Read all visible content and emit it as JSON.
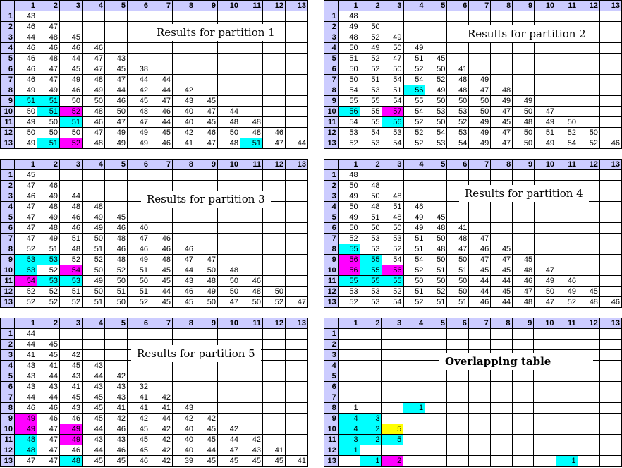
{
  "col_headers": [
    "1",
    "2",
    "3",
    "4",
    "5",
    "6",
    "7",
    "8",
    "9",
    "10",
    "11",
    "12",
    "13"
  ],
  "row_headers": [
    "1",
    "2",
    "3",
    "4",
    "5",
    "6",
    "7",
    "8",
    "9",
    "10",
    "11",
    "12",
    "13"
  ],
  "colors": {
    "header": "#ccccff",
    "cyan": "#00ffff",
    "magenta": "#ff00ff",
    "yellow": "#ffff00"
  },
  "panels": [
    {
      "title": "Results for partition 1",
      "title_bold": false,
      "rows": [
        [
          "43"
        ],
        [
          "46",
          "47"
        ],
        [
          "44",
          "48",
          "45"
        ],
        [
          "46",
          "46",
          "46",
          "46"
        ],
        [
          "46",
          "48",
          "44",
          "47",
          "43"
        ],
        [
          "46",
          "47",
          "45",
          "47",
          "45",
          "38"
        ],
        [
          "46",
          "47",
          "49",
          "48",
          "47",
          "44",
          "44"
        ],
        [
          "49",
          "49",
          "46",
          "49",
          "44",
          "42",
          "44",
          "42"
        ],
        [
          "51",
          "51",
          "50",
          "50",
          "46",
          "45",
          "47",
          "43",
          "45"
        ],
        [
          "50",
          "51",
          "52",
          "48",
          "50",
          "48",
          "46",
          "40",
          "47",
          "44"
        ],
        [
          "49",
          "50",
          "51",
          "46",
          "47",
          "47",
          "44",
          "40",
          "45",
          "48",
          "48"
        ],
        [
          "50",
          "50",
          "50",
          "47",
          "49",
          "49",
          "45",
          "42",
          "46",
          "50",
          "48",
          "46"
        ],
        [
          "49",
          "51",
          "52",
          "48",
          "49",
          "49",
          "46",
          "41",
          "47",
          "48",
          "51",
          "47",
          "44"
        ]
      ],
      "highlights": [
        {
          "row": 9,
          "col": 1,
          "color": "cyan"
        },
        {
          "row": 9,
          "col": 2,
          "color": "cyan"
        },
        {
          "row": 10,
          "col": 2,
          "color": "cyan"
        },
        {
          "row": 10,
          "col": 3,
          "color": "magenta"
        },
        {
          "row": 11,
          "col": 3,
          "color": "cyan"
        },
        {
          "row": 13,
          "col": 2,
          "color": "cyan"
        },
        {
          "row": 13,
          "col": 3,
          "color": "magenta"
        },
        {
          "row": 13,
          "col": 11,
          "color": "cyan"
        }
      ]
    },
    {
      "title": "Results for partition 2",
      "title_bold": false,
      "rows": [
        [
          "48"
        ],
        [
          "49",
          "50"
        ],
        [
          "48",
          "52",
          "49"
        ],
        [
          "50",
          "49",
          "50",
          "49"
        ],
        [
          "51",
          "52",
          "47",
          "51",
          "45"
        ],
        [
          "50",
          "52",
          "50",
          "52",
          "50",
          "41"
        ],
        [
          "50",
          "51",
          "54",
          "54",
          "52",
          "48",
          "49"
        ],
        [
          "54",
          "53",
          "51",
          "56",
          "49",
          "48",
          "47",
          "48"
        ],
        [
          "55",
          "55",
          "54",
          "55",
          "50",
          "50",
          "50",
          "49",
          "49"
        ],
        [
          "56",
          "55",
          "57",
          "54",
          "53",
          "53",
          "50",
          "47",
          "50",
          "47"
        ],
        [
          "54",
          "55",
          "56",
          "52",
          "50",
          "52",
          "49",
          "45",
          "48",
          "49",
          "50"
        ],
        [
          "53",
          "54",
          "53",
          "52",
          "54",
          "53",
          "49",
          "47",
          "50",
          "51",
          "52",
          "50"
        ],
        [
          "52",
          "53",
          "54",
          "52",
          "53",
          "54",
          "49",
          "47",
          "50",
          "49",
          "54",
          "52",
          "46"
        ]
      ],
      "highlights": [
        {
          "row": 8,
          "col": 4,
          "color": "cyan"
        },
        {
          "row": 10,
          "col": 1,
          "color": "cyan"
        },
        {
          "row": 10,
          "col": 3,
          "color": "magenta"
        },
        {
          "row": 11,
          "col": 3,
          "color": "cyan"
        }
      ]
    },
    {
      "title": "Results for partition 3",
      "title_bold": false,
      "rows": [
        [
          "45"
        ],
        [
          "47",
          "46"
        ],
        [
          "46",
          "49",
          "44"
        ],
        [
          "47",
          "48",
          "48",
          "48"
        ],
        [
          "47",
          "49",
          "46",
          "49",
          "45"
        ],
        [
          "47",
          "48",
          "46",
          "49",
          "46",
          "40"
        ],
        [
          "47",
          "49",
          "51",
          "50",
          "48",
          "47",
          "46"
        ],
        [
          "52",
          "51",
          "48",
          "51",
          "46",
          "46",
          "46",
          "46"
        ],
        [
          "53",
          "53",
          "52",
          "52",
          "48",
          "49",
          "48",
          "47",
          "47"
        ],
        [
          "53",
          "52",
          "54",
          "50",
          "52",
          "51",
          "45",
          "44",
          "50",
          "48"
        ],
        [
          "54",
          "53",
          "53",
          "49",
          "50",
          "50",
          "45",
          "43",
          "48",
          "50",
          "46"
        ],
        [
          "52",
          "52",
          "51",
          "50",
          "51",
          "51",
          "44",
          "46",
          "49",
          "50",
          "48",
          "50"
        ],
        [
          "52",
          "52",
          "52",
          "51",
          "50",
          "52",
          "45",
          "45",
          "50",
          "47",
          "50",
          "52",
          "47"
        ]
      ],
      "highlights": [
        {
          "row": 9,
          "col": 1,
          "color": "cyan"
        },
        {
          "row": 9,
          "col": 2,
          "color": "cyan"
        },
        {
          "row": 10,
          "col": 1,
          "color": "cyan"
        },
        {
          "row": 10,
          "col": 3,
          "color": "magenta"
        },
        {
          "row": 11,
          "col": 1,
          "color": "magenta"
        },
        {
          "row": 11,
          "col": 2,
          "color": "cyan"
        },
        {
          "row": 11,
          "col": 3,
          "color": "cyan"
        }
      ]
    },
    {
      "title": "Results for partition 4",
      "title_bold": false,
      "rows": [
        [
          "48"
        ],
        [
          "50",
          "48"
        ],
        [
          "49",
          "50",
          "48"
        ],
        [
          "50",
          "48",
          "51",
          "46"
        ],
        [
          "49",
          "51",
          "48",
          "49",
          "45"
        ],
        [
          "50",
          "50",
          "50",
          "49",
          "48",
          "41"
        ],
        [
          "52",
          "53",
          "53",
          "51",
          "50",
          "48",
          "47"
        ],
        [
          "55",
          "53",
          "52",
          "51",
          "48",
          "47",
          "46",
          "45"
        ],
        [
          "56",
          "55",
          "54",
          "54",
          "50",
          "50",
          "47",
          "47",
          "45"
        ],
        [
          "56",
          "55",
          "56",
          "52",
          "51",
          "51",
          "45",
          "45",
          "48",
          "47"
        ],
        [
          "55",
          "55",
          "55",
          "50",
          "50",
          "50",
          "44",
          "44",
          "46",
          "49",
          "46"
        ],
        [
          "53",
          "53",
          "52",
          "51",
          "52",
          "50",
          "44",
          "45",
          "47",
          "50",
          "49",
          "45"
        ],
        [
          "52",
          "53",
          "54",
          "52",
          "51",
          "51",
          "46",
          "44",
          "48",
          "47",
          "52",
          "48",
          "46"
        ]
      ],
      "highlights": [
        {
          "row": 8,
          "col": 1,
          "color": "cyan"
        },
        {
          "row": 9,
          "col": 1,
          "color": "magenta"
        },
        {
          "row": 9,
          "col": 2,
          "color": "cyan"
        },
        {
          "row": 10,
          "col": 1,
          "color": "magenta"
        },
        {
          "row": 10,
          "col": 2,
          "color": "cyan"
        },
        {
          "row": 10,
          "col": 3,
          "color": "magenta"
        },
        {
          "row": 11,
          "col": 1,
          "color": "cyan"
        },
        {
          "row": 11,
          "col": 2,
          "color": "cyan"
        },
        {
          "row": 11,
          "col": 3,
          "color": "cyan"
        }
      ]
    },
    {
      "title": "Results for partition 5",
      "title_bold": false,
      "rows": [
        [
          "44"
        ],
        [
          "44",
          "45"
        ],
        [
          "41",
          "45",
          "42"
        ],
        [
          "43",
          "41",
          "45",
          "43"
        ],
        [
          "43",
          "44",
          "43",
          "44",
          "42"
        ],
        [
          "43",
          "43",
          "41",
          "43",
          "43",
          "32"
        ],
        [
          "44",
          "44",
          "45",
          "45",
          "43",
          "41",
          "42"
        ],
        [
          "46",
          "46",
          "43",
          "45",
          "41",
          "41",
          "41",
          "43"
        ],
        [
          "49",
          "46",
          "46",
          "45",
          "42",
          "42",
          "44",
          "42",
          "42"
        ],
        [
          "49",
          "47",
          "49",
          "44",
          "46",
          "45",
          "42",
          "40",
          "45",
          "42"
        ],
        [
          "48",
          "47",
          "49",
          "43",
          "43",
          "45",
          "42",
          "40",
          "45",
          "44",
          "42"
        ],
        [
          "48",
          "47",
          "46",
          "44",
          "46",
          "45",
          "42",
          "40",
          "44",
          "47",
          "43",
          "41"
        ],
        [
          "47",
          "47",
          "48",
          "45",
          "45",
          "46",
          "42",
          "39",
          "45",
          "45",
          "45",
          "45",
          "41"
        ]
      ],
      "highlights": [
        {
          "row": 9,
          "col": 1,
          "color": "magenta"
        },
        {
          "row": 10,
          "col": 1,
          "color": "magenta"
        },
        {
          "row": 10,
          "col": 3,
          "color": "magenta"
        },
        {
          "row": 11,
          "col": 1,
          "color": "cyan"
        },
        {
          "row": 11,
          "col": 3,
          "color": "magenta"
        },
        {
          "row": 12,
          "col": 1,
          "color": "cyan"
        },
        {
          "row": 13,
          "col": 3,
          "color": "cyan"
        }
      ]
    },
    {
      "title": "Overlapping table",
      "title_bold": true,
      "rows": [
        [],
        [],
        [],
        [],
        [],
        [],
        [],
        [
          "1",
          "",
          "",
          "1"
        ],
        [
          "4",
          "3"
        ],
        [
          "4",
          "2",
          "5"
        ],
        [
          "3",
          "2",
          "5"
        ],
        [
          "1"
        ],
        [
          "",
          "1",
          "2",
          "",
          "",
          "",
          "",
          "",
          "",
          "",
          "1"
        ]
      ],
      "highlights": [
        {
          "row": 8,
          "col": 4,
          "color": "cyan"
        },
        {
          "row": 9,
          "col": 1,
          "color": "cyan"
        },
        {
          "row": 9,
          "col": 2,
          "color": "cyan"
        },
        {
          "row": 10,
          "col": 1,
          "color": "cyan"
        },
        {
          "row": 10,
          "col": 2,
          "color": "cyan"
        },
        {
          "row": 10,
          "col": 3,
          "color": "yellow"
        },
        {
          "row": 11,
          "col": 1,
          "color": "cyan"
        },
        {
          "row": 11,
          "col": 2,
          "color": "cyan"
        },
        {
          "row": 11,
          "col": 3,
          "color": "cyan"
        },
        {
          "row": 12,
          "col": 1,
          "color": "cyan"
        },
        {
          "row": 13,
          "col": 2,
          "color": "cyan"
        },
        {
          "row": 13,
          "col": 3,
          "color": "magenta"
        },
        {
          "row": 13,
          "col": 11,
          "color": "cyan"
        }
      ]
    }
  ]
}
